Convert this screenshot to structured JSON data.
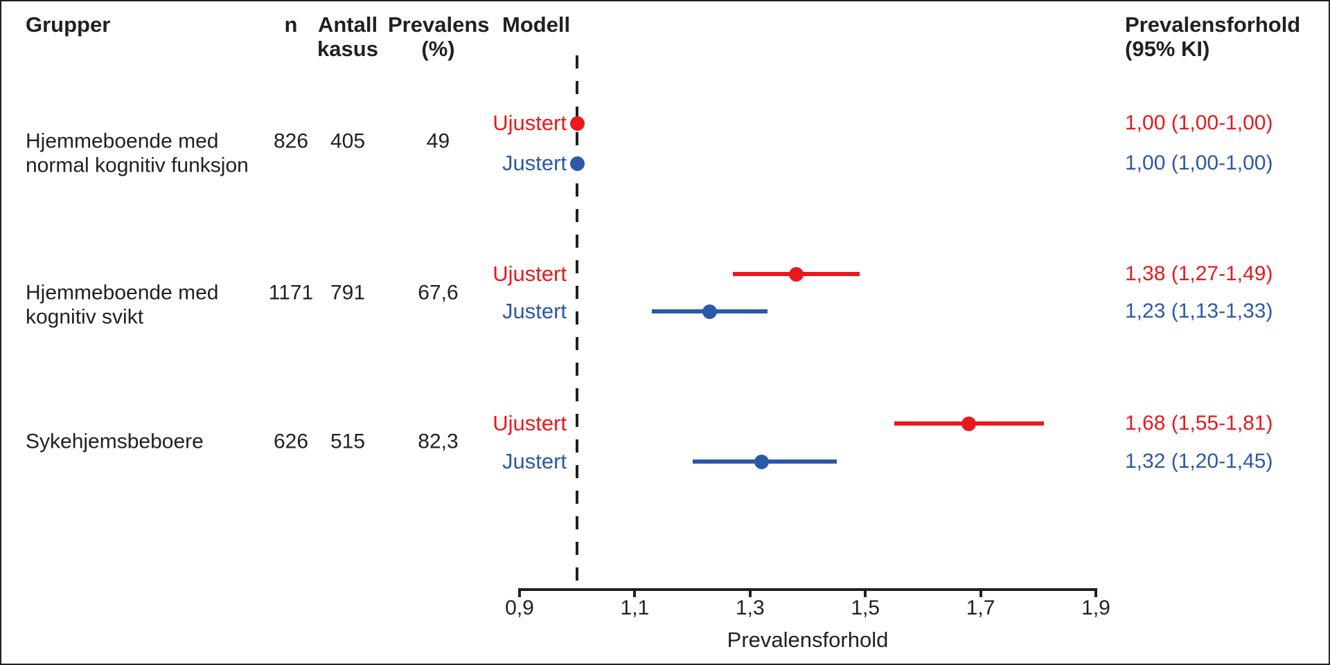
{
  "figure": {
    "columns": {
      "grupper": "Grupper",
      "n": "n",
      "antall_line1": "Antall",
      "antall_line2": "kasus",
      "prevalens_line1": "Prevalens",
      "prevalens_line2": "(%)",
      "modell": "Modell",
      "pf_line1": "Prevalensforhold",
      "pf_line2": "(95% KI)"
    },
    "text_color": "#231f20"
  },
  "chart_data": {
    "type": "scatter",
    "subtype": "forest-plot",
    "title": "",
    "xlabel": "Prevalensforhold",
    "ylabel": "",
    "xlim": [
      0.9,
      1.9
    ],
    "xticks": [
      0.9,
      1.1,
      1.3,
      1.5,
      1.7,
      1.9
    ],
    "xtick_labels": [
      "0,9",
      "1,1",
      "1,3",
      "1,5",
      "1,7",
      "1,9"
    ],
    "reference_line_x": 1.0,
    "grid": false,
    "legend_position": "none",
    "model_colors": {
      "Ujustert": "#e8191d",
      "Justert": "#2b58a7"
    },
    "groups": [
      {
        "label_lines": [
          "Hjemmeboende med",
          "normal kognitiv funksjon"
        ],
        "n": "826",
        "antall_kasus": "405",
        "prevalens_pct": "49",
        "models": [
          {
            "label": "Ujustert",
            "estimate": 1.0,
            "ci_low": 1.0,
            "ci_high": 1.0,
            "text": "1,00 (1,00-1,00)"
          },
          {
            "label": "Justert",
            "estimate": 1.0,
            "ci_low": 1.0,
            "ci_high": 1.0,
            "text": "1,00 (1,00-1,00)"
          }
        ]
      },
      {
        "label_lines": [
          "Hjemmeboende med",
          "kognitiv svikt"
        ],
        "n": "1171",
        "antall_kasus": "791",
        "prevalens_pct": "67,6",
        "models": [
          {
            "label": "Ujustert",
            "estimate": 1.38,
            "ci_low": 1.27,
            "ci_high": 1.49,
            "text": "1,38 (1,27-1,49)"
          },
          {
            "label": "Justert",
            "estimate": 1.23,
            "ci_low": 1.13,
            "ci_high": 1.33,
            "text": "1,23 (1,13-1,33)"
          }
        ]
      },
      {
        "label_lines": [
          "Sykehjemsbeboere"
        ],
        "n": "626",
        "antall_kasus": "515",
        "prevalens_pct": "82,3",
        "models": [
          {
            "label": "Ujustert",
            "estimate": 1.68,
            "ci_low": 1.55,
            "ci_high": 1.81,
            "text": "1,68 (1,55-1,81)"
          },
          {
            "label": "Justert",
            "estimate": 1.32,
            "ci_low": 1.2,
            "ci_high": 1.45,
            "text": "1,32 (1,20-1,45)"
          }
        ]
      }
    ]
  }
}
